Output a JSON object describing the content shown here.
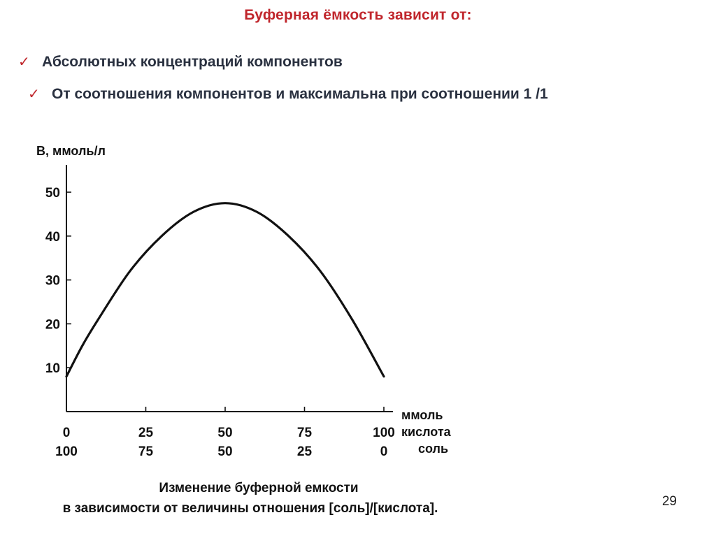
{
  "slide": {
    "title": "Буферная ёмкость зависит от:",
    "bullets": [
      "Абсолютных концентраций компонентов",
      "От соотношения компонентов  и максимальна при соотношении  1 /1"
    ],
    "page_number": "29",
    "check_color": "#c0262c",
    "title_color": "#c0262c"
  },
  "chart_data": {
    "type": "line",
    "ylabel": "B, ммоль/л",
    "y_ticks": [
      10,
      20,
      30,
      40,
      50
    ],
    "x_ticks_top": [
      "0",
      "25",
      "50",
      "75",
      "100"
    ],
    "x_ticks_bottom": [
      "100",
      "75",
      "50",
      "25",
      "0"
    ],
    "x_unit_lines": [
      "ммоль",
      "кислота",
      "соль"
    ],
    "caption_lines": [
      "Изменение буферной емкости",
      "в зависимости от величины отношения [соль]/[кислота]."
    ],
    "xlim": [
      0,
      100
    ],
    "ylim": [
      0,
      55
    ],
    "grid": false,
    "series": [
      {
        "x": [
          0,
          5,
          10,
          20,
          30,
          40,
          50,
          60,
          70,
          80,
          90,
          100
        ],
        "values": [
          8,
          15,
          21,
          32,
          40,
          45.5,
          47.5,
          45.5,
          40,
          32,
          21,
          8
        ]
      }
    ]
  }
}
